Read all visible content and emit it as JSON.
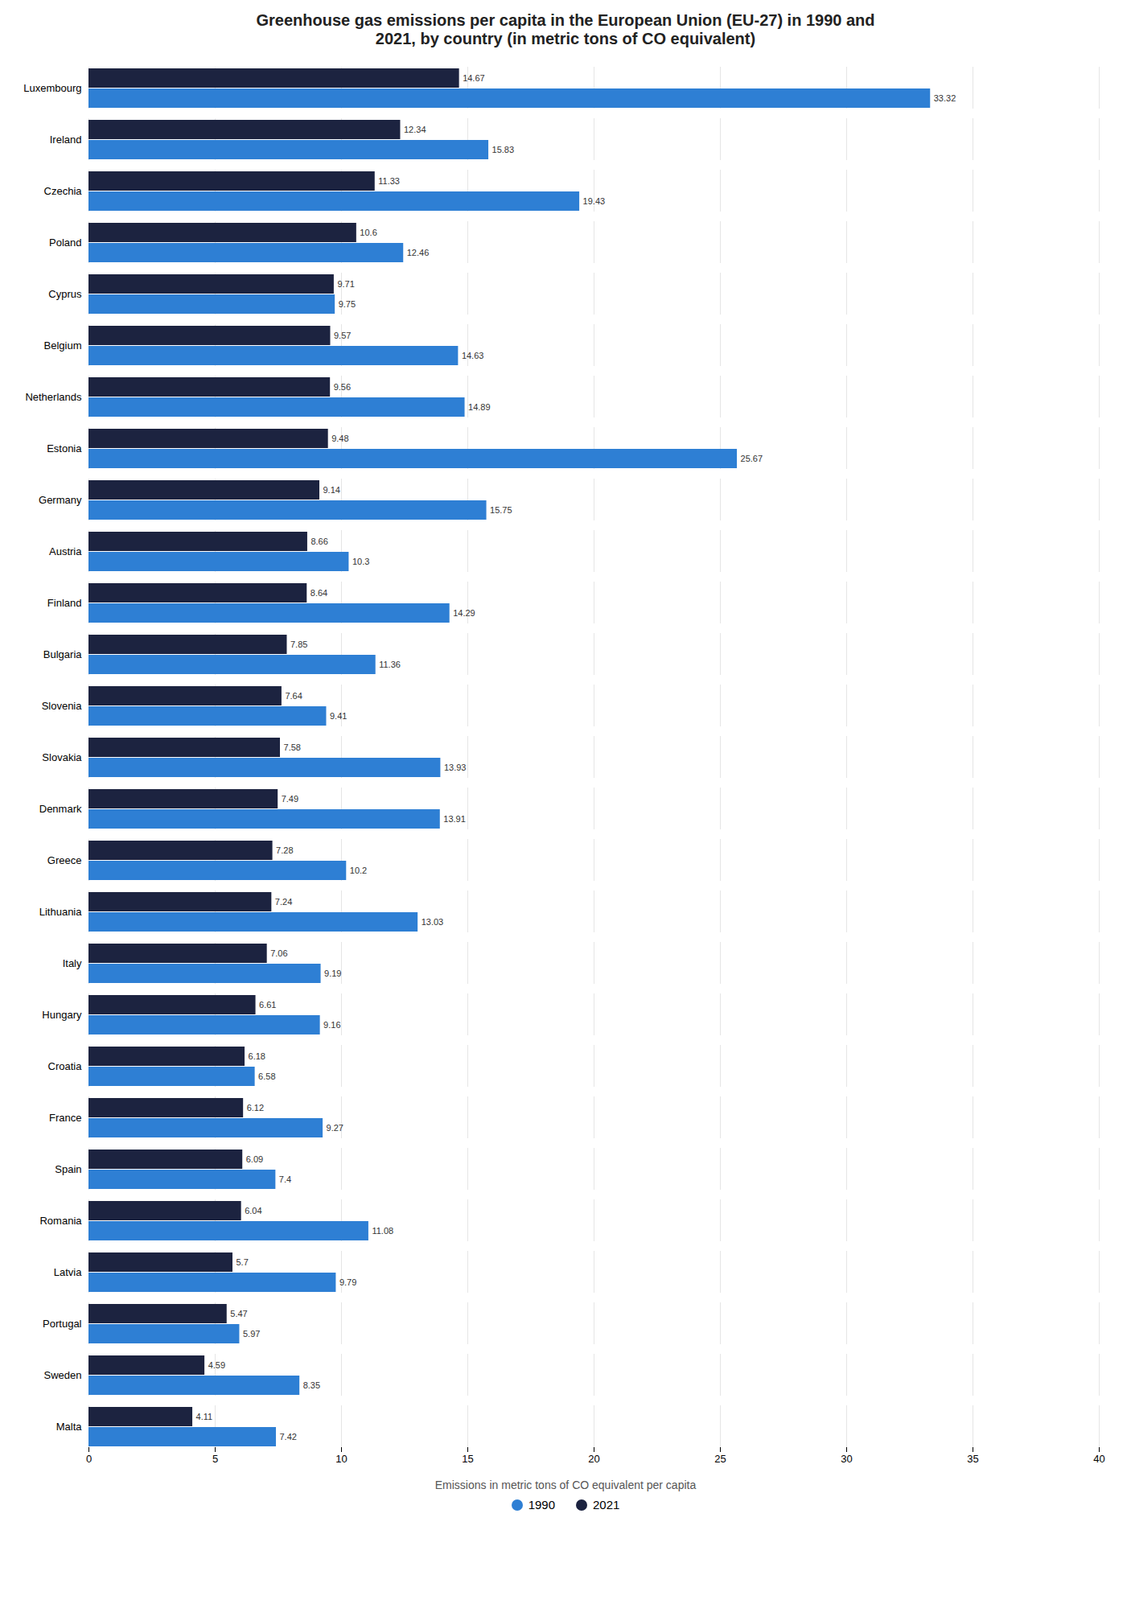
{
  "chart_data": {
    "type": "bar",
    "orientation": "horizontal",
    "title": "Greenhouse gas emissions per capita in the European Union (EU-27) in 1990 and\n2021, by country (in metric tons of CO equivalent)",
    "xlabel": "Emissions in metric tons of CO equivalent per capita",
    "categories": [
      "Luxembourg",
      "Ireland",
      "Czechia",
      "Poland",
      "Cyprus",
      "Belgium",
      "Netherlands",
      "Estonia",
      "Germany",
      "Austria",
      "Finland",
      "Bulgaria",
      "Slovenia",
      "Slovakia",
      "Denmark",
      "Greece",
      "Lithuania",
      "Italy",
      "Hungary",
      "Croatia",
      "France",
      "Spain",
      "Romania",
      "Latvia",
      "Portugal",
      "Sweden",
      "Malta"
    ],
    "series": [
      {
        "name": "2021",
        "color": "#1c2340",
        "values": [
          14.67,
          12.34,
          11.33,
          10.6,
          9.71,
          9.57,
          9.56,
          9.48,
          9.14,
          8.66,
          8.64,
          7.85,
          7.64,
          7.58,
          7.49,
          7.28,
          7.24,
          7.06,
          6.61,
          6.18,
          6.12,
          6.09,
          6.04,
          5.7,
          5.47,
          4.59,
          4.11
        ]
      },
      {
        "name": "1990",
        "color": "#2e7fd4",
        "values": [
          33.32,
          15.83,
          19.43,
          12.46,
          9.75,
          14.63,
          14.89,
          25.67,
          15.75,
          10.3,
          14.29,
          11.36,
          9.41,
          13.93,
          13.91,
          10.2,
          13.03,
          9.19,
          9.16,
          6.58,
          9.27,
          7.4,
          11.08,
          9.79,
          5.97,
          8.35,
          7.42
        ]
      }
    ],
    "xlim": [
      0,
      40
    ],
    "xticks": [
      0,
      5,
      10,
      15,
      20,
      25,
      30,
      35,
      40
    ],
    "grid": true,
    "data_labels": true,
    "legend": "bottom"
  }
}
